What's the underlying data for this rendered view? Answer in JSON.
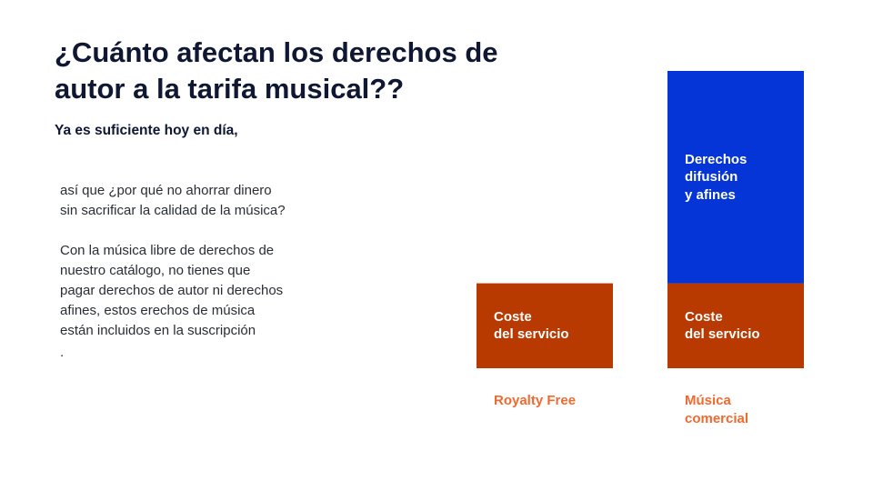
{
  "slide": {
    "title": "¿Cuánto afectan los derechos de autor a la tarifa musical??",
    "subtitle": "Ya es suficiente hoy en día,",
    "paragraph1": "así que ¿por qué no ahorrar dinero sin sacrificar la calidad de la música?",
    "paragraph2": "Con la música libre de derechos de nuestro catálogo, no tienes que pagar derechos de autor ni derechos afines, estos erechos de música están incluidos en la suscripción",
    "trailing_dot": "."
  },
  "chart_data": {
    "type": "bar",
    "stacked": true,
    "categories": [
      "Royalty Free",
      "Música\ncomercial"
    ],
    "category_label_color": "#f06a2f",
    "series": [
      {
        "name": "Coste\ndel servicio",
        "color": "#b93a00",
        "values": [
          1,
          1
        ]
      },
      {
        "name": "Derechos\ndifusión\ny afines",
        "color": "#0535d6",
        "values": [
          0,
          2.5
        ]
      }
    ],
    "ylim": [
      0,
      3.5
    ],
    "grid": false,
    "legend": "none",
    "title": "",
    "xlabel": "",
    "ylabel": ""
  }
}
